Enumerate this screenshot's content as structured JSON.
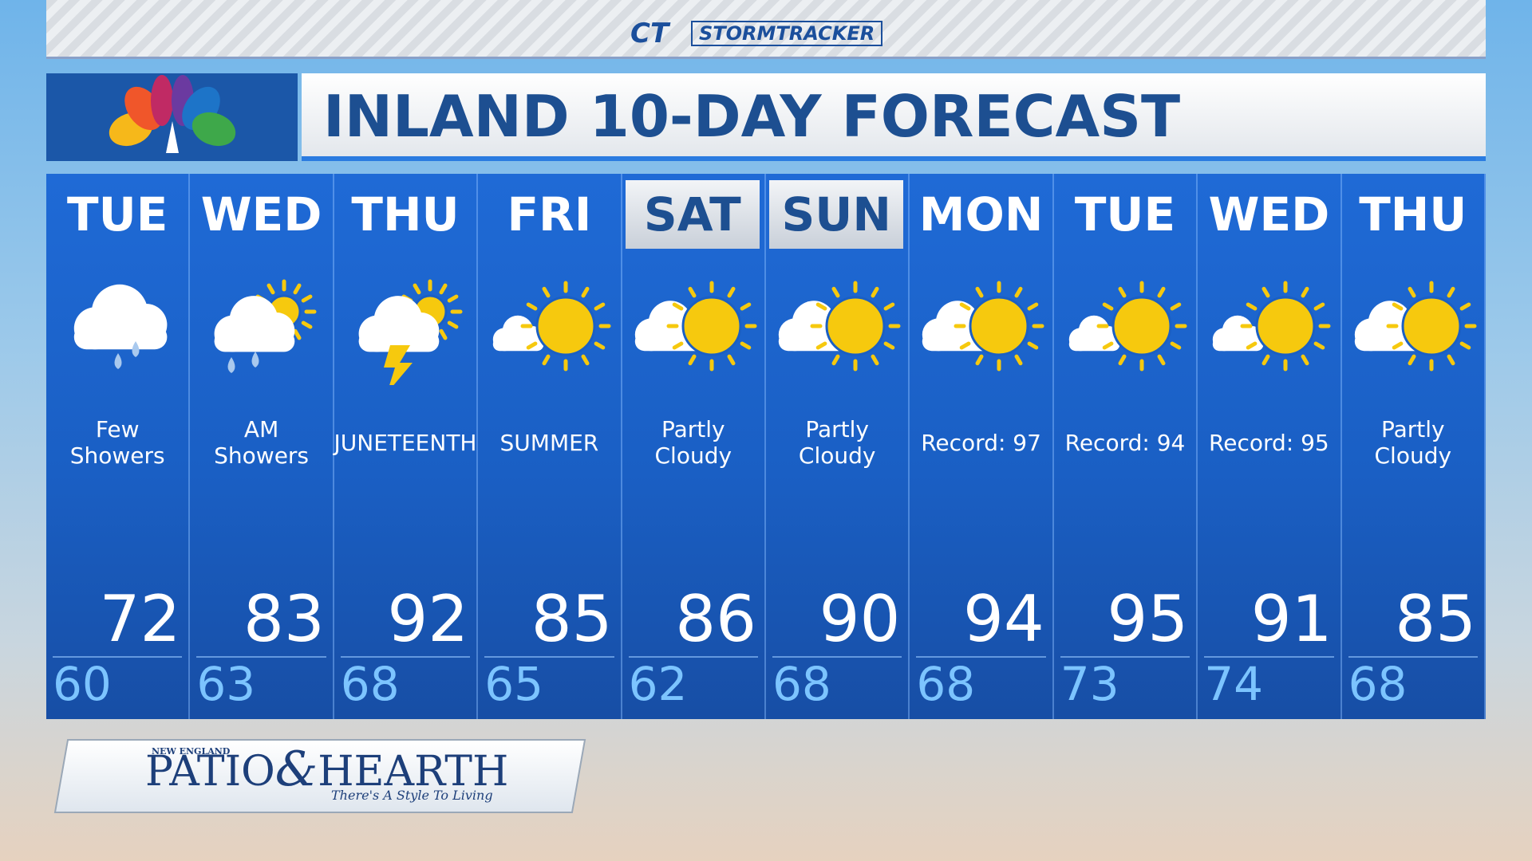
{
  "header": {
    "station": "CT",
    "brand": "STORMTRACKER",
    "title": "INLAND 10-DAY FORECAST"
  },
  "days": [
    {
      "day": "TUE",
      "condition": "Few Showers",
      "high": 72,
      "low": 60
    },
    {
      "day": "WED",
      "condition": "AM Showers",
      "high": 83,
      "low": 63
    },
    {
      "day": "THU",
      "condition": "JUNETEENTH",
      "high": 92,
      "low": 68
    },
    {
      "day": "FRI",
      "condition": "SUMMER",
      "high": 85,
      "low": 65
    },
    {
      "day": "SAT",
      "condition": "Partly Cloudy",
      "high": 86,
      "low": 62
    },
    {
      "day": "SUN",
      "condition": "Partly Cloudy",
      "high": 90,
      "low": 68
    },
    {
      "day": "MON",
      "condition": "Record: 97",
      "high": 94,
      "low": 68
    },
    {
      "day": "TUE",
      "condition": "Record: 94",
      "high": 95,
      "low": 73
    },
    {
      "day": "WED",
      "condition": "Record: 95",
      "high": 91,
      "low": 74
    },
    {
      "day": "THU",
      "condition": "Partly Cloudy",
      "high": 85,
      "low": 68
    }
  ],
  "sponsor": {
    "region": "NEW ENGLAND",
    "name1": "PATIO",
    "amp": "&",
    "name2": "HEARTH",
    "tagline": "There's A Style To Living"
  }
}
